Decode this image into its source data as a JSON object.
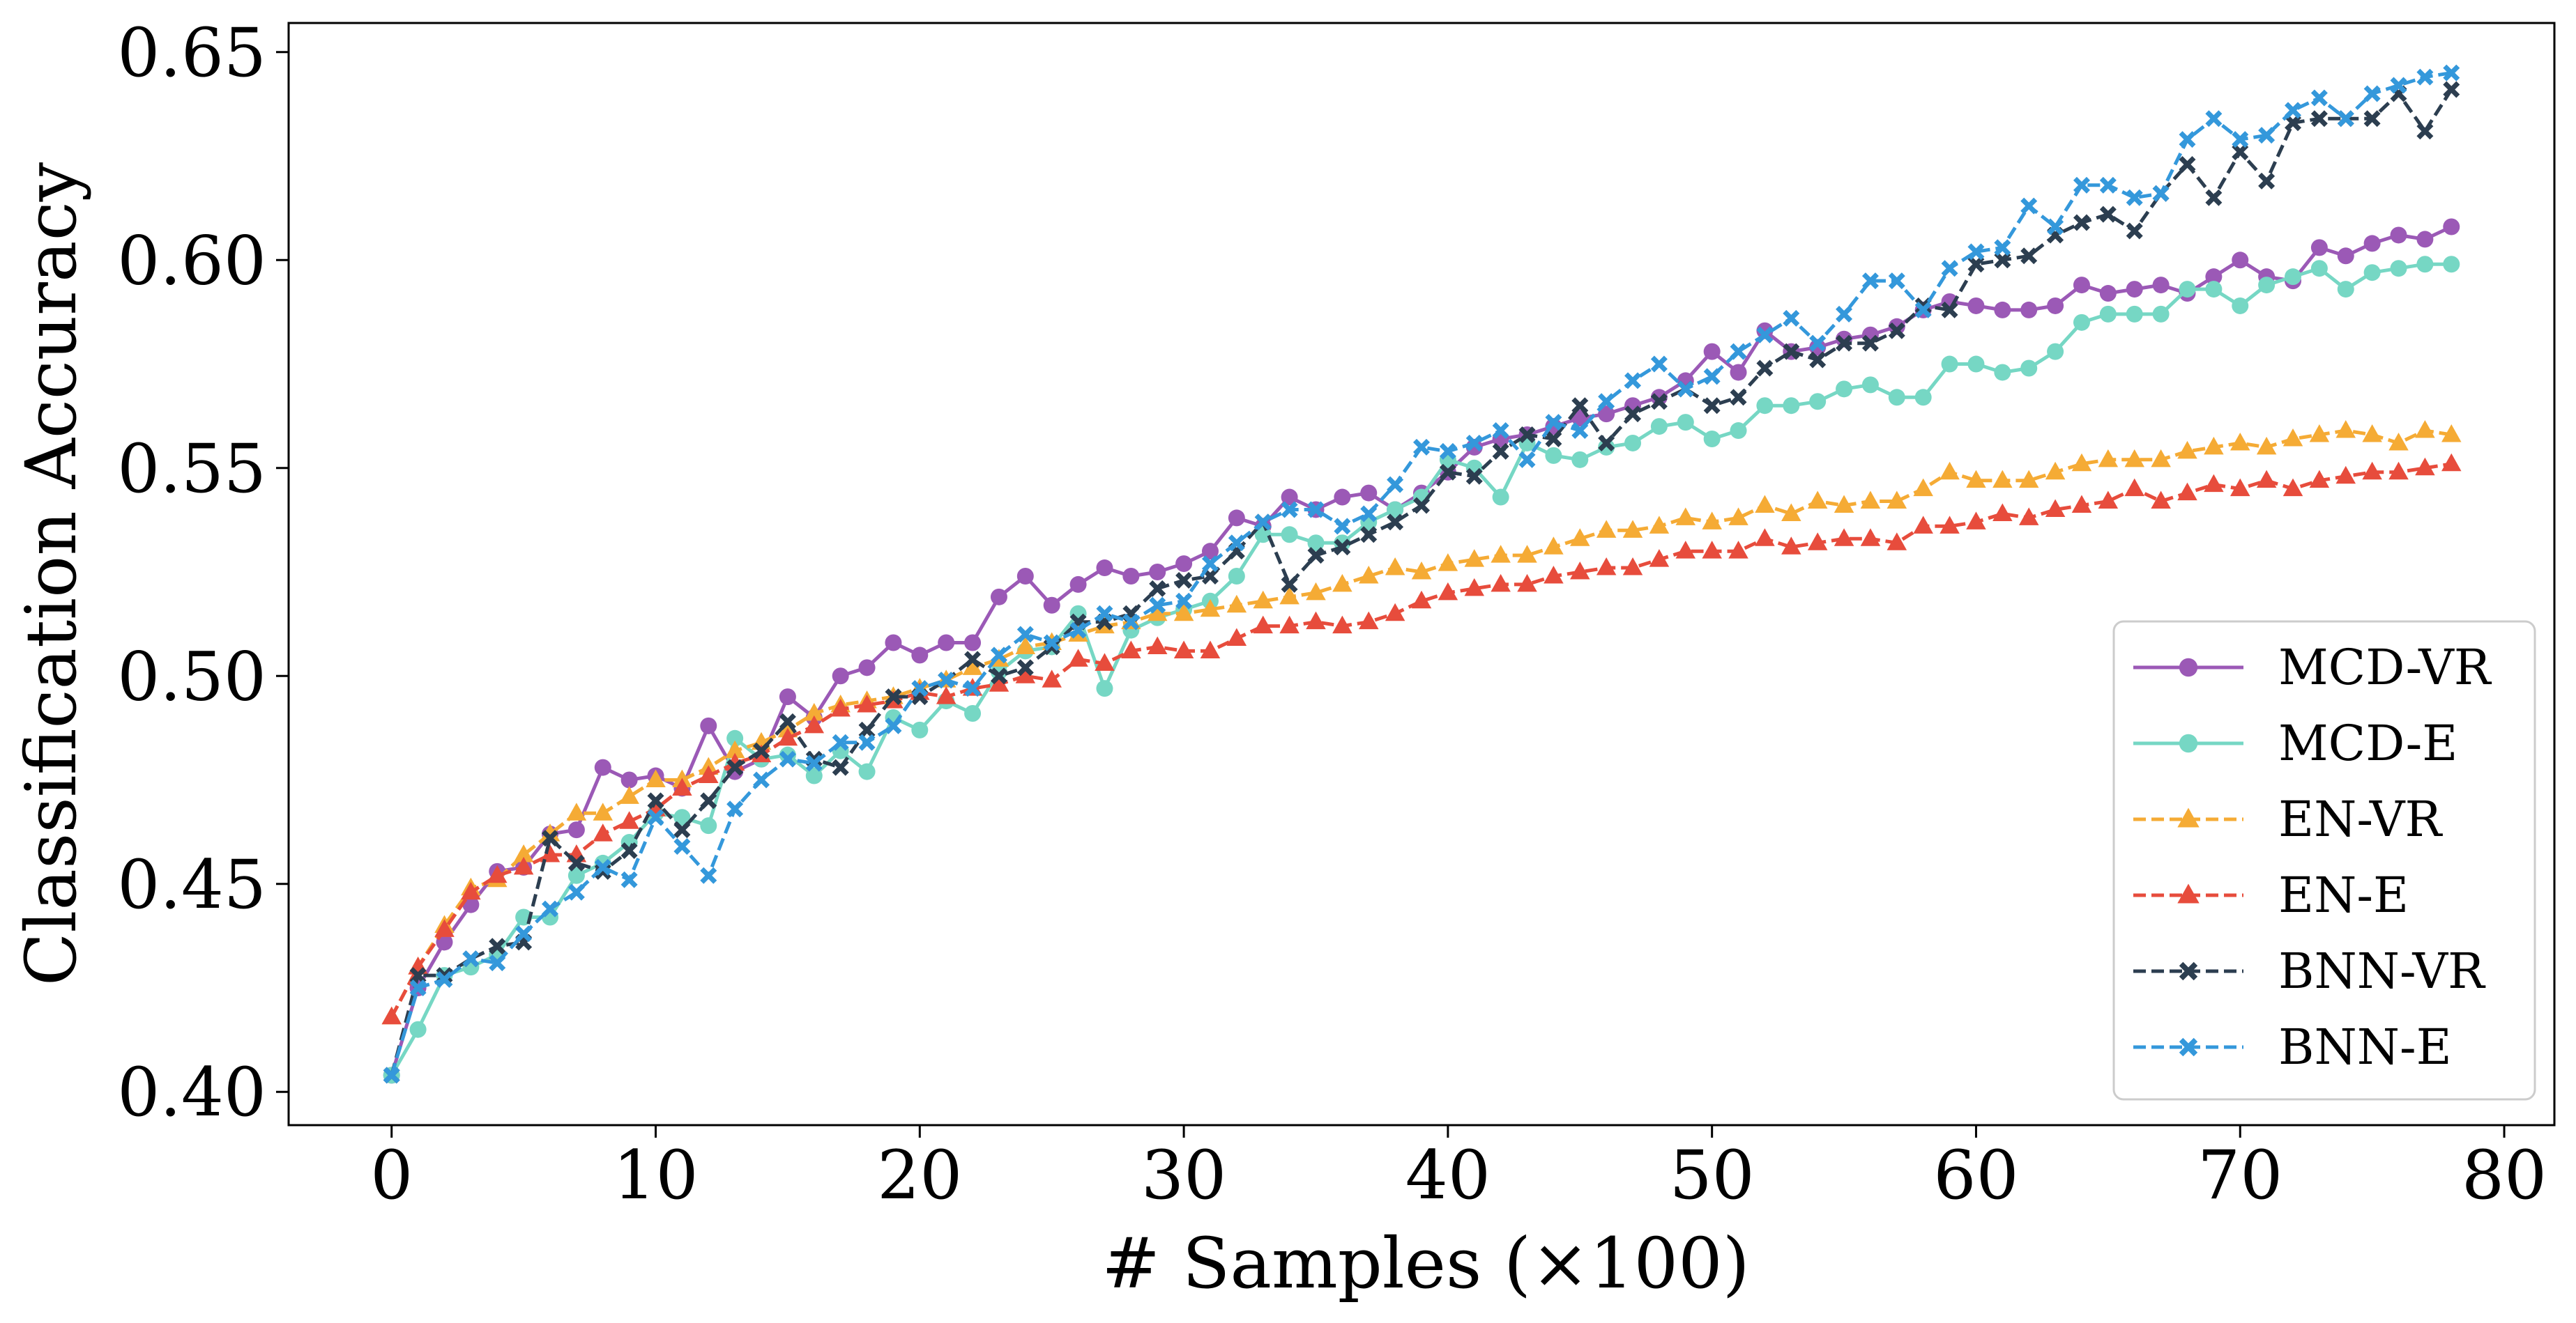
{
  "chart_data": {
    "type": "line",
    "title": "",
    "xlabel": "# Samples (×100)",
    "ylabel": "Classification Accuracy",
    "xlim": [
      -3.9,
      81.9
    ],
    "ylim": [
      0.392,
      0.657
    ],
    "xticks": [
      0,
      10,
      20,
      30,
      40,
      50,
      60,
      70,
      80
    ],
    "xtick_labels": [
      "0",
      "10",
      "20",
      "30",
      "40",
      "50",
      "60",
      "70",
      "80"
    ],
    "yticks": [
      0.4,
      0.45,
      0.5,
      0.55,
      0.6,
      0.65
    ],
    "ytick_labels": [
      "0.40",
      "0.45",
      "0.50",
      "0.55",
      "0.60",
      "0.65"
    ],
    "grid": false,
    "legend_position": "lower-right",
    "x": [
      0,
      1,
      2,
      3,
      4,
      5,
      6,
      7,
      8,
      9,
      10,
      11,
      12,
      13,
      14,
      15,
      16,
      17,
      18,
      19,
      20,
      21,
      22,
      23,
      24,
      25,
      26,
      27,
      28,
      29,
      30,
      31,
      32,
      33,
      34,
      35,
      36,
      37,
      38,
      39,
      40,
      41,
      42,
      43,
      44,
      45,
      46,
      47,
      48,
      49,
      50,
      51,
      52,
      53,
      54,
      55,
      56,
      57,
      58,
      59,
      60,
      61,
      62,
      63,
      64,
      65,
      66,
      67,
      68,
      69,
      70,
      71,
      72,
      73,
      74,
      75,
      76,
      77,
      78
    ],
    "series": [
      {
        "name": "MCD-VR",
        "color": "#9b59b6",
        "linestyle": "solid",
        "marker": "circle",
        "values": [
          0.404,
          0.425,
          0.436,
          0.445,
          0.453,
          0.454,
          0.462,
          0.463,
          0.478,
          0.475,
          0.476,
          0.473,
          0.488,
          0.477,
          0.48,
          0.495,
          0.49,
          0.5,
          0.502,
          0.508,
          0.505,
          0.508,
          0.508,
          0.519,
          0.524,
          0.517,
          0.522,
          0.526,
          0.524,
          0.525,
          0.527,
          0.53,
          0.538,
          0.536,
          0.543,
          0.54,
          0.543,
          0.544,
          0.54,
          0.544,
          0.549,
          0.555,
          0.557,
          0.558,
          0.56,
          0.562,
          0.563,
          0.565,
          0.567,
          0.571,
          0.578,
          0.573,
          0.583,
          0.578,
          0.579,
          0.581,
          0.582,
          0.584,
          0.588,
          0.59,
          0.589,
          0.588,
          0.588,
          0.589,
          0.594,
          0.592,
          0.593,
          0.594,
          0.592,
          0.596,
          0.6,
          0.596,
          0.595,
          0.603,
          0.601,
          0.604,
          0.606,
          0.605,
          0.608
        ]
      },
      {
        "name": "MCD-E",
        "color": "#76d7c4",
        "linestyle": "solid",
        "marker": "circle",
        "values": [
          0.404,
          0.415,
          0.428,
          0.43,
          0.433,
          0.442,
          0.442,
          0.452,
          0.455,
          0.46,
          0.467,
          0.466,
          0.464,
          0.485,
          0.48,
          0.481,
          0.476,
          0.482,
          0.477,
          0.49,
          0.487,
          0.494,
          0.491,
          0.501,
          0.506,
          0.507,
          0.515,
          0.497,
          0.511,
          0.514,
          0.516,
          0.518,
          0.524,
          0.534,
          0.534,
          0.532,
          0.532,
          0.537,
          0.54,
          0.543,
          0.552,
          0.55,
          0.543,
          0.556,
          0.553,
          0.552,
          0.555,
          0.556,
          0.56,
          0.561,
          0.557,
          0.559,
          0.565,
          0.565,
          0.566,
          0.569,
          0.57,
          0.567,
          0.567,
          0.575,
          0.575,
          0.573,
          0.574,
          0.578,
          0.585,
          0.587,
          0.587,
          0.587,
          0.593,
          0.593,
          0.589,
          0.594,
          0.596,
          0.598,
          0.593,
          0.597,
          0.598,
          0.599,
          0.599
        ]
      },
      {
        "name": "EN-VR",
        "color": "#f5ab35",
        "linestyle": "dashed",
        "marker": "triangle",
        "values": [
          0.418,
          0.43,
          0.44,
          0.449,
          0.451,
          0.457,
          0.462,
          0.467,
          0.467,
          0.471,
          0.475,
          0.475,
          0.478,
          0.482,
          0.484,
          0.487,
          0.491,
          0.493,
          0.494,
          0.495,
          0.497,
          0.499,
          0.502,
          0.504,
          0.507,
          0.508,
          0.51,
          0.512,
          0.513,
          0.515,
          0.515,
          0.516,
          0.517,
          0.518,
          0.519,
          0.52,
          0.522,
          0.524,
          0.526,
          0.525,
          0.527,
          0.528,
          0.529,
          0.529,
          0.531,
          0.533,
          0.535,
          0.535,
          0.536,
          0.538,
          0.537,
          0.538,
          0.541,
          0.539,
          0.542,
          0.541,
          0.542,
          0.542,
          0.545,
          0.549,
          0.547,
          0.547,
          0.547,
          0.549,
          0.551,
          0.552,
          0.552,
          0.552,
          0.554,
          0.555,
          0.556,
          0.555,
          0.557,
          0.558,
          0.559,
          0.558,
          0.556,
          0.559,
          0.558
        ]
      },
      {
        "name": "EN-E",
        "color": "#e74c3c",
        "linestyle": "dashed",
        "marker": "triangle",
        "values": [
          0.418,
          0.43,
          0.439,
          0.448,
          0.452,
          0.454,
          0.457,
          0.457,
          0.462,
          0.465,
          0.468,
          0.473,
          0.476,
          0.479,
          0.481,
          0.485,
          0.488,
          0.492,
          0.493,
          0.494,
          0.496,
          0.495,
          0.497,
          0.498,
          0.5,
          0.499,
          0.504,
          0.503,
          0.506,
          0.507,
          0.506,
          0.506,
          0.509,
          0.512,
          0.512,
          0.513,
          0.512,
          0.513,
          0.515,
          0.518,
          0.52,
          0.521,
          0.522,
          0.522,
          0.524,
          0.525,
          0.526,
          0.526,
          0.528,
          0.53,
          0.53,
          0.53,
          0.533,
          0.531,
          0.532,
          0.533,
          0.533,
          0.532,
          0.536,
          0.536,
          0.537,
          0.539,
          0.538,
          0.54,
          0.541,
          0.542,
          0.545,
          0.542,
          0.544,
          0.546,
          0.545,
          0.547,
          0.545,
          0.547,
          0.548,
          0.549,
          0.549,
          0.55,
          0.551
        ]
      },
      {
        "name": "BNN-VR",
        "color": "#2c3e50",
        "linestyle": "dashed",
        "marker": "x",
        "values": [
          0.404,
          0.428,
          0.428,
          0.432,
          0.435,
          0.436,
          0.461,
          0.455,
          0.453,
          0.458,
          0.47,
          0.463,
          0.47,
          0.478,
          0.482,
          0.489,
          0.48,
          0.478,
          0.487,
          0.495,
          0.495,
          0.499,
          0.504,
          0.5,
          0.502,
          0.507,
          0.513,
          0.513,
          0.515,
          0.521,
          0.523,
          0.524,
          0.53,
          0.537,
          0.522,
          0.529,
          0.531,
          0.534,
          0.537,
          0.541,
          0.549,
          0.548,
          0.554,
          0.558,
          0.557,
          0.565,
          0.556,
          0.563,
          0.566,
          0.569,
          0.565,
          0.567,
          0.574,
          0.578,
          0.576,
          0.58,
          0.58,
          0.583,
          0.589,
          0.588,
          0.599,
          0.6,
          0.601,
          0.606,
          0.609,
          0.611,
          0.607,
          0.616,
          0.623,
          0.615,
          0.626,
          0.619,
          0.633,
          0.634,
          0.634,
          0.634,
          0.64,
          0.631,
          0.641
        ]
      },
      {
        "name": "BNN-E",
        "color": "#3498db",
        "linestyle": "dashed",
        "marker": "x",
        "values": [
          0.404,
          0.425,
          0.427,
          0.432,
          0.431,
          0.438,
          0.444,
          0.448,
          0.454,
          0.451,
          0.466,
          0.459,
          0.452,
          0.468,
          0.475,
          0.48,
          0.479,
          0.484,
          0.484,
          0.488,
          0.497,
          0.499,
          0.497,
          0.505,
          0.51,
          0.508,
          0.511,
          0.515,
          0.513,
          0.517,
          0.518,
          0.527,
          0.532,
          0.537,
          0.54,
          0.54,
          0.536,
          0.539,
          0.546,
          0.555,
          0.554,
          0.556,
          0.559,
          0.552,
          0.561,
          0.559,
          0.566,
          0.571,
          0.575,
          0.569,
          0.572,
          0.578,
          0.582,
          0.586,
          0.58,
          0.587,
          0.595,
          0.595,
          0.588,
          0.598,
          0.602,
          0.603,
          0.613,
          0.608,
          0.618,
          0.618,
          0.615,
          0.616,
          0.629,
          0.634,
          0.629,
          0.63,
          0.636,
          0.639,
          0.634,
          0.64,
          0.642,
          0.644,
          0.645
        ]
      }
    ]
  }
}
